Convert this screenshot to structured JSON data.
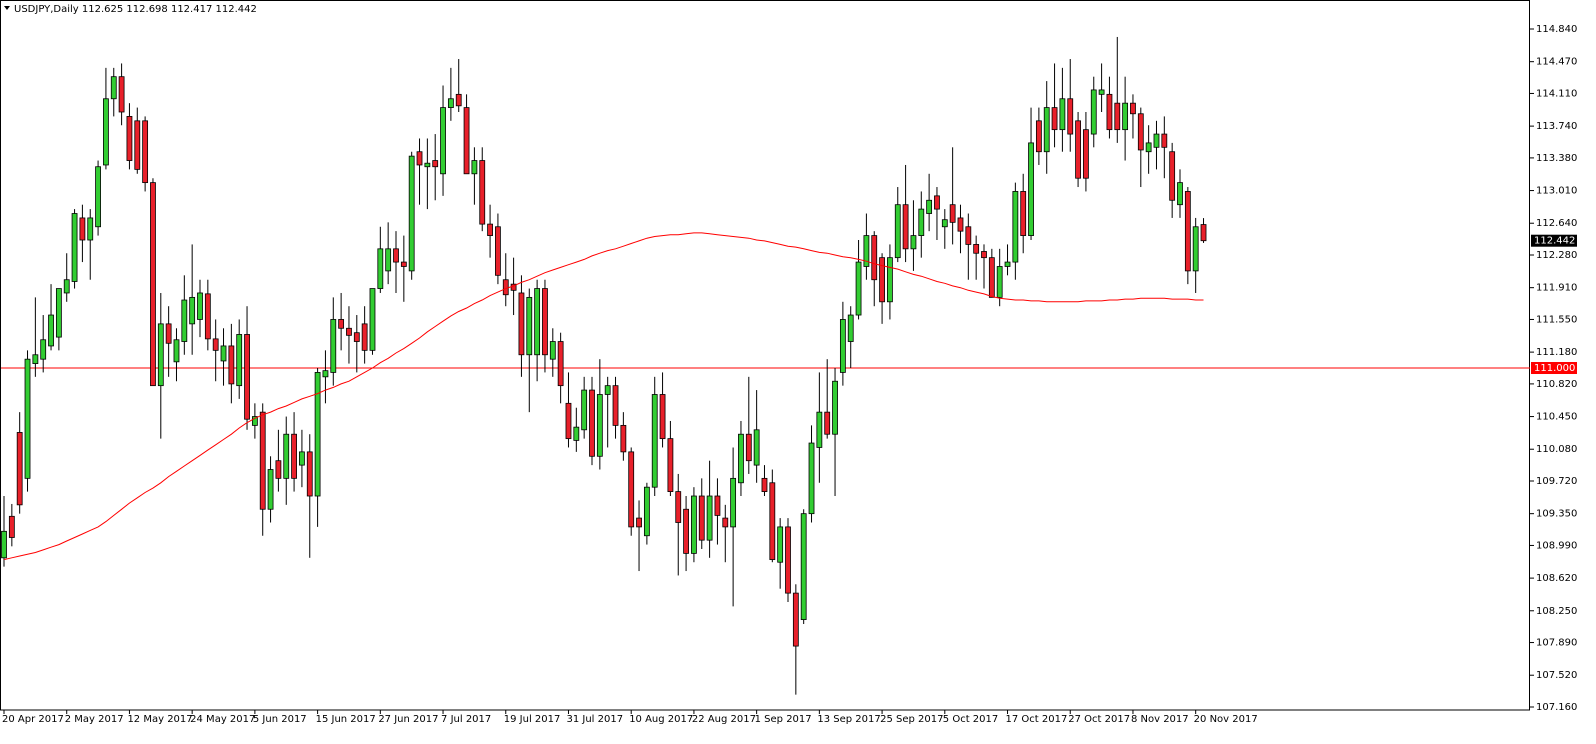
{
  "chart_data": {
    "type": "candlestick",
    "title": "USDJPY,Daily  112.625 112.698 112.417 112.442",
    "categories": [
      "20 Apr 2017",
      null,
      null,
      null,
      null,
      null,
      null,
      null,
      "2 May 2017",
      null,
      null,
      null,
      null,
      null,
      null,
      null,
      "12 May 2017",
      null,
      null,
      null,
      null,
      null,
      null,
      null,
      "24 May 2017",
      null,
      null,
      null,
      null,
      null,
      null,
      null,
      "5 Jun 2017",
      null,
      null,
      null,
      null,
      null,
      null,
      null,
      "15 Jun 2017",
      null,
      null,
      null,
      null,
      null,
      null,
      null,
      "27 Jun 2017",
      null,
      null,
      null,
      null,
      null,
      null,
      null,
      "7 Jul 2017",
      null,
      null,
      null,
      null,
      null,
      null,
      null,
      "19 Jul 2017",
      null,
      null,
      null,
      null,
      null,
      null,
      null,
      "31 Jul 2017",
      null,
      null,
      null,
      null,
      null,
      null,
      null,
      "10 Aug 2017",
      null,
      null,
      null,
      null,
      null,
      null,
      null,
      "22 Aug 2017",
      null,
      null,
      null,
      null,
      null,
      null,
      null,
      "1 Sep 2017",
      null,
      null,
      null,
      null,
      null,
      null,
      null,
      "13 Sep 2017",
      null,
      null,
      null,
      null,
      null,
      null,
      null,
      "25 Sep 2017",
      null,
      null,
      null,
      null,
      null,
      null,
      null,
      "5 Oct 2017",
      null,
      null,
      null,
      null,
      null,
      null,
      null,
      "17 Oct 2017",
      null,
      null,
      null,
      null,
      null,
      null,
      null,
      "27 Oct 2017",
      null,
      null,
      null,
      null,
      null,
      null,
      null,
      "8 Nov 2017",
      null,
      null,
      null,
      null,
      null,
      null,
      null,
      "20 Nov 2017",
      null
    ],
    "open": [
      108.85,
      109.32,
      110.27,
      109.75,
      111.05,
      111.1,
      111.25,
      111.35,
      111.85,
      111.98,
      112.7,
      112.45,
      112.6,
      113.3,
      114.05,
      114.3,
      113.85,
      113.8,
      113.8,
      113.1,
      110.8,
      111.5,
      111.07,
      111.3,
      111.5,
      111.55,
      111.84,
      111.33,
      111.08,
      111.25,
      110.8,
      111.38,
      110.35,
      110.5,
      109.4,
      109.95,
      109.75,
      110.25,
      109.9,
      110.05,
      109.55,
      110.9,
      110.95,
      111.55,
      111.45,
      111.4,
      111.5,
      111.2,
      111.9,
      112.1,
      112.35,
      112.2,
      112.1,
      113.45,
      113.28,
      113.35,
      113.2,
      113.95,
      114.1,
      113.95,
      113.2,
      113.35,
      112.63,
      112.6,
      112.0,
      111.95,
      111.85,
      111.15,
      111.15,
      111.9,
      111.1,
      111.3,
      110.6,
      110.18,
      110.3,
      110.75,
      110.0,
      110.7,
      110.8,
      110.35,
      110.05,
      109.3,
      109.1,
      109.65,
      110.7,
      110.2,
      109.6,
      109.4,
      108.9,
      109.55,
      109.05,
      109.55,
      109.3,
      109.2,
      109.7,
      110.25,
      109.9,
      109.75,
      109.7,
      108.8,
      109.2,
      108.45,
      108.15,
      109.35,
      110.1,
      110.5,
      110.25,
      110.95,
      111.3,
      111.6,
      112.15,
      112.5,
      112.25,
      111.75,
      112.25,
      112.85,
      112.35,
      112.5,
      112.75,
      112.95,
      112.6,
      112.85,
      112.7,
      112.6,
      112.4,
      112.32,
      112.25,
      111.8,
      112.15,
      112.2,
      113.0,
      112.5,
      113.8,
      113.45,
      113.95,
      113.7,
      114.05,
      113.8,
      113.7,
      113.65,
      114.1,
      114.1,
      114.0,
      113.7,
      114.0,
      113.88,
      113.45,
      113.5,
      113.65,
      113.45,
      112.85,
      113.0,
      112.1,
      112.625
    ],
    "high": [
      109.55,
      109.46,
      110.5,
      111.2,
      111.8,
      111.6,
      111.95,
      111.85,
      112.3,
      112.8,
      112.85,
      112.8,
      113.35,
      114.4,
      114.4,
      114.45,
      114.0,
      113.95,
      113.85,
      113.15,
      111.85,
      111.7,
      111.45,
      112.05,
      112.4,
      112.0,
      112.0,
      111.55,
      111.45,
      111.5,
      111.55,
      111.7,
      110.6,
      110.6,
      110.0,
      110.3,
      110.45,
      110.5,
      110.3,
      110.25,
      111.0,
      111.2,
      111.8,
      111.85,
      111.7,
      111.6,
      111.7,
      111.9,
      112.6,
      112.65,
      112.55,
      112.5,
      113.45,
      113.6,
      113.6,
      113.65,
      114.2,
      114.4,
      114.5,
      114.1,
      113.5,
      113.5,
      112.85,
      112.75,
      112.3,
      112.25,
      112.05,
      111.9,
      112.0,
      112.0,
      111.45,
      111.4,
      110.95,
      110.55,
      110.9,
      110.9,
      111.1,
      110.9,
      110.9,
      110.5,
      110.1,
      109.5,
      109.7,
      110.9,
      110.95,
      110.4,
      109.8,
      109.55,
      109.65,
      109.75,
      109.95,
      109.75,
      109.45,
      110.1,
      110.4,
      110.9,
      110.75,
      109.9,
      109.85,
      109.3,
      109.3,
      108.55,
      109.4,
      110.35,
      110.95,
      111.1,
      111.0,
      111.75,
      111.7,
      112.45,
      112.75,
      112.55,
      112.3,
      112.4,
      113.05,
      113.3,
      112.9,
      113.0,
      113.2,
      113.05,
      112.8,
      113.5,
      112.85,
      112.75,
      112.5,
      112.4,
      112.35,
      112.35,
      112.4,
      113.1,
      113.2,
      113.95,
      113.95,
      114.25,
      114.45,
      114.4,
      114.5,
      113.9,
      113.9,
      114.3,
      114.45,
      114.3,
      114.75,
      114.3,
      114.1,
      113.95,
      113.75,
      113.8,
      113.85,
      113.55,
      113.25,
      113.05,
      112.7,
      112.698
    ],
    "low": [
      108.75,
      108.98,
      109.35,
      109.6,
      110.9,
      110.95,
      111.2,
      111.2,
      111.75,
      111.9,
      112.2,
      112.0,
      112.5,
      113.25,
      113.85,
      113.75,
      113.25,
      113.2,
      113.0,
      110.8,
      110.2,
      110.9,
      110.85,
      111.15,
      111.15,
      111.35,
      111.2,
      110.85,
      110.8,
      110.6,
      110.65,
      110.3,
      110.2,
      109.1,
      109.25,
      109.6,
      109.45,
      109.6,
      109.65,
      108.85,
      109.2,
      110.6,
      110.8,
      111.2,
      111.05,
      110.95,
      111.05,
      111.15,
      111.85,
      111.95,
      111.85,
      111.75,
      112.0,
      112.85,
      112.8,
      112.9,
      112.95,
      113.8,
      113.9,
      113.25,
      112.85,
      112.55,
      112.25,
      111.95,
      111.7,
      111.6,
      110.9,
      110.5,
      110.85,
      110.95,
      110.9,
      110.6,
      110.1,
      110.05,
      110.2,
      109.9,
      109.85,
      110.1,
      110.2,
      109.95,
      109.1,
      108.7,
      109.0,
      109.55,
      110.1,
      109.55,
      108.65,
      108.7,
      108.8,
      108.95,
      108.85,
      109.0,
      108.8,
      108.3,
      109.55,
      109.8,
      109.7,
      109.55,
      108.8,
      108.5,
      108.35,
      107.3,
      108.1,
      109.25,
      109.7,
      110.2,
      109.55,
      110.8,
      111.0,
      111.55,
      112.0,
      111.7,
      111.5,
      111.55,
      112.2,
      112.2,
      112.1,
      112.25,
      112.55,
      112.45,
      112.35,
      112.4,
      112.3,
      112.0,
      112.0,
      111.9,
      111.8,
      111.7,
      112.05,
      112.0,
      112.3,
      112.45,
      113.3,
      113.2,
      113.5,
      113.45,
      113.45,
      113.05,
      113.0,
      113.5,
      113.9,
      113.6,
      113.55,
      113.35,
      113.6,
      113.05,
      113.2,
      113.25,
      113.15,
      112.7,
      112.7,
      111.95,
      111.85,
      112.417
    ],
    "close": [
      109.15,
      109.08,
      109.45,
      111.1,
      111.15,
      111.32,
      111.6,
      111.9,
      112.0,
      112.75,
      112.45,
      112.7,
      113.28,
      114.05,
      114.3,
      113.9,
      113.35,
      113.25,
      113.1,
      110.8,
      111.5,
      111.28,
      111.32,
      111.77,
      111.8,
      111.85,
      111.33,
      111.2,
      111.25,
      110.82,
      111.38,
      110.42,
      110.45,
      109.4,
      109.85,
      109.75,
      110.25,
      109.75,
      110.05,
      109.55,
      110.95,
      110.97,
      111.55,
      111.45,
      111.37,
      111.3,
      111.2,
      111.9,
      112.35,
      112.35,
      112.2,
      112.15,
      113.4,
      113.3,
      113.32,
      113.28,
      113.95,
      114.05,
      113.97,
      113.2,
      113.35,
      112.63,
      112.5,
      112.05,
      111.83,
      111.88,
      111.15,
      111.8,
      111.9,
      111.15,
      111.3,
      110.8,
      110.2,
      110.33,
      110.75,
      110.0,
      110.7,
      110.8,
      110.35,
      110.05,
      109.2,
      109.2,
      109.65,
      110.7,
      110.2,
      109.6,
      109.25,
      108.9,
      109.55,
      109.05,
      109.55,
      109.33,
      109.2,
      109.75,
      110.25,
      109.95,
      110.3,
      109.6,
      108.83,
      109.2,
      108.45,
      107.85,
      109.35,
      110.15,
      110.5,
      110.25,
      110.85,
      111.55,
      111.6,
      112.2,
      112.5,
      112.0,
      111.75,
      112.25,
      112.85,
      112.35,
      112.5,
      112.8,
      112.9,
      112.8,
      112.68,
      112.65,
      112.55,
      112.4,
      112.3,
      112.25,
      111.8,
      112.15,
      112.2,
      113.0,
      112.5,
      113.55,
      113.45,
      113.95,
      113.7,
      114.05,
      113.65,
      113.15,
      113.15,
      114.15,
      114.15,
      113.7,
      113.7,
      114.0,
      113.88,
      113.47,
      113.55,
      113.65,
      113.5,
      112.9,
      113.1,
      112.1,
      112.6,
      112.442
    ],
    "up_color": "#32cd32",
    "down_color": "#e8202a",
    "ma": {
      "color": "#ff0000",
      "values": [
        108.83,
        108.85,
        108.87,
        108.89,
        108.91,
        108.94,
        108.97,
        109.0,
        109.04,
        109.08,
        109.12,
        109.16,
        109.2,
        109.26,
        109.33,
        109.4,
        109.47,
        109.53,
        109.59,
        109.64,
        109.7,
        109.77,
        109.83,
        109.89,
        109.95,
        110.01,
        110.07,
        110.13,
        110.19,
        110.25,
        110.32,
        110.38,
        110.43,
        110.47,
        110.5,
        110.54,
        110.57,
        110.61,
        110.65,
        110.68,
        110.71,
        110.75,
        110.78,
        110.82,
        110.85,
        110.9,
        110.95,
        111.0,
        111.06,
        111.11,
        111.17,
        111.22,
        111.28,
        111.34,
        111.41,
        111.47,
        111.53,
        111.59,
        111.64,
        111.68,
        111.73,
        111.77,
        111.82,
        111.86,
        111.9,
        111.93,
        111.97,
        112.0,
        112.04,
        112.08,
        112.11,
        112.14,
        112.17,
        112.2,
        112.23,
        112.27,
        112.3,
        112.33,
        112.35,
        112.38,
        112.41,
        112.44,
        112.47,
        112.49,
        112.5,
        112.51,
        112.51,
        112.52,
        112.53,
        112.53,
        112.52,
        112.51,
        112.5,
        112.49,
        112.48,
        112.47,
        112.45,
        112.44,
        112.42,
        112.4,
        112.38,
        112.37,
        112.35,
        112.33,
        112.31,
        112.3,
        112.28,
        112.26,
        112.25,
        112.23,
        112.21,
        112.18,
        112.16,
        112.14,
        112.12,
        112.09,
        112.06,
        112.04,
        112.01,
        111.98,
        111.96,
        111.93,
        111.91,
        111.88,
        111.86,
        111.84,
        111.81,
        111.79,
        111.78,
        111.77,
        111.77,
        111.76,
        111.76,
        111.75,
        111.75,
        111.75,
        111.75,
        111.75,
        111.76,
        111.76,
        111.76,
        111.77,
        111.77,
        111.78,
        111.78,
        111.79,
        111.79,
        111.79,
        111.79,
        111.78,
        111.78,
        111.78,
        111.77,
        111.77
      ]
    },
    "hline": {
      "value": 111,
      "label": "111.000",
      "color": "#ff0000"
    },
    "last_price": {
      "value": 112.442,
      "label": "112.442"
    },
    "ylim": [
      107.126,
      115.146
    ],
    "yticks": [
      {
        "value": 114.84,
        "label": "114.840"
      },
      {
        "value": 114.47,
        "label": "114.470"
      },
      {
        "value": 114.11,
        "label": "114.110"
      },
      {
        "value": 113.74,
        "label": "113.740"
      },
      {
        "value": 113.38,
        "label": "113.380"
      },
      {
        "value": 113.01,
        "label": "113.010"
      },
      {
        "value": 112.64,
        "label": "112.640"
      },
      {
        "value": 112.28,
        "label": "112.280"
      },
      {
        "value": 111.91,
        "label": "111.910"
      },
      {
        "value": 111.55,
        "label": "111.550"
      },
      {
        "value": 111.18,
        "label": "111.180"
      },
      {
        "value": 110.82,
        "label": "110.820"
      },
      {
        "value": 110.45,
        "label": "110.450"
      },
      {
        "value": 110.08,
        "label": "110.080"
      },
      {
        "value": 109.72,
        "label": "109.720"
      },
      {
        "value": 109.35,
        "label": "109.350"
      },
      {
        "value": 108.99,
        "label": "108.990"
      },
      {
        "value": 108.62,
        "label": "108.620"
      },
      {
        "value": 108.25,
        "label": "108.250"
      },
      {
        "value": 107.89,
        "label": "107.890"
      },
      {
        "value": 107.52,
        "label": "107.520"
      },
      {
        "value": 107.16,
        "label": "107.160"
      }
    ]
  }
}
